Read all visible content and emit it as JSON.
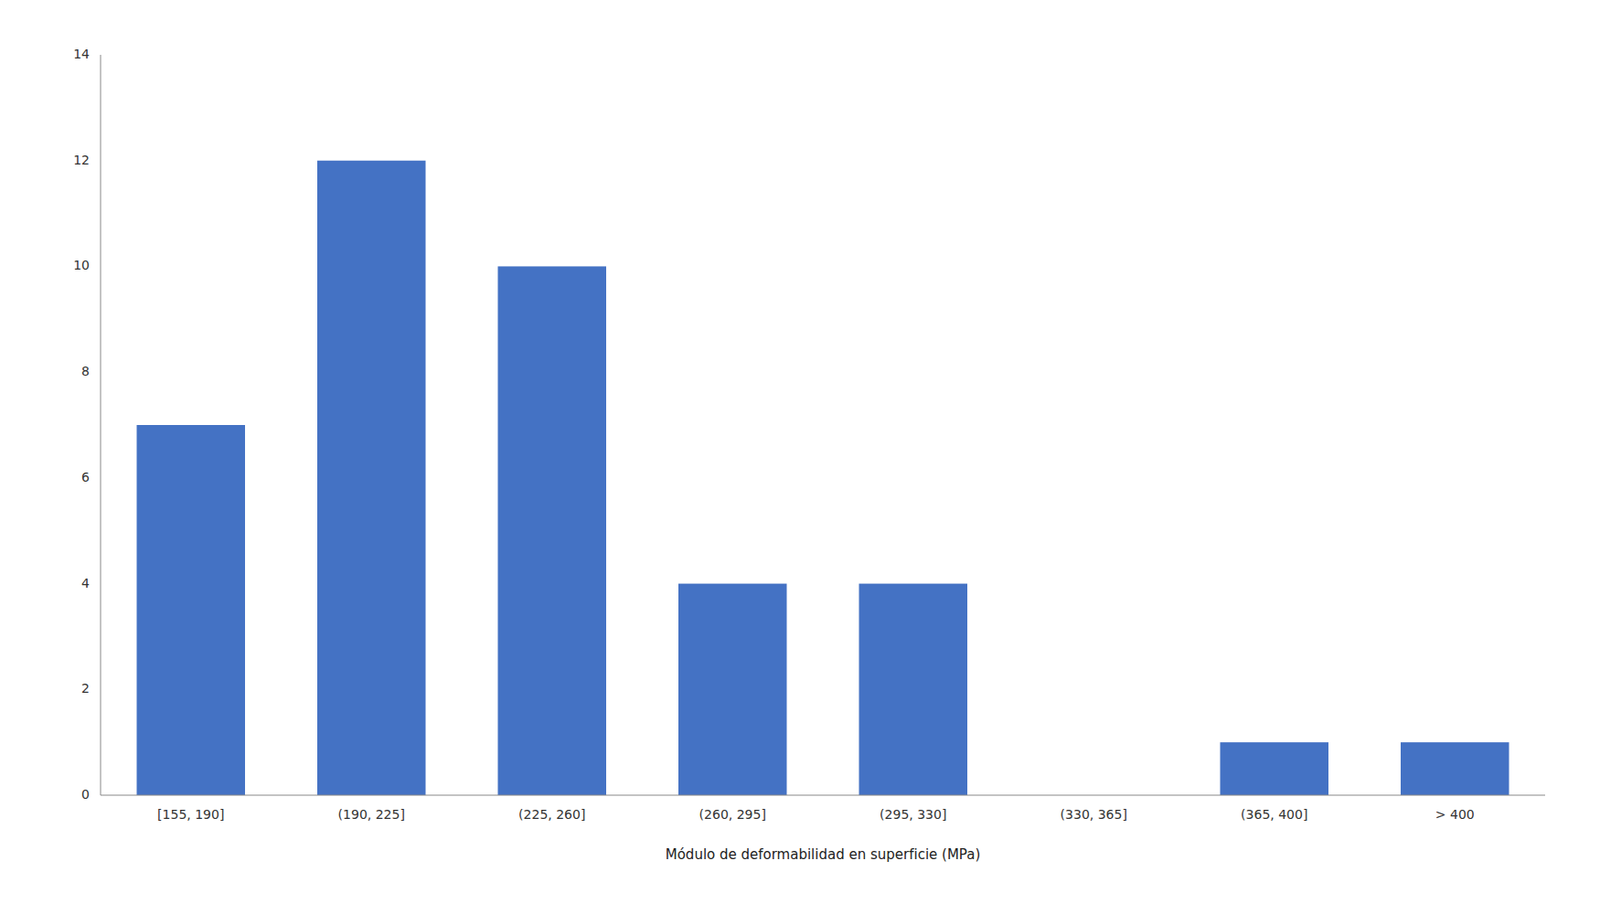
{
  "chart_data": {
    "type": "bar",
    "categories": [
      "[155, 190]",
      "(190, 225]",
      "(225, 260]",
      "(260, 295]",
      "(295, 330]",
      "(330, 365]",
      "(365, 400]",
      "> 400"
    ],
    "values": [
      7,
      12,
      10,
      4,
      4,
      0,
      1,
      1
    ],
    "color": "#4472C4",
    "xlabel": "Módulo de deformabilidad en superficie (MPa)",
    "ylim": [
      0,
      14
    ],
    "yticks": [
      0,
      2,
      4,
      6,
      8,
      10,
      12,
      14
    ],
    "grid": false
  }
}
